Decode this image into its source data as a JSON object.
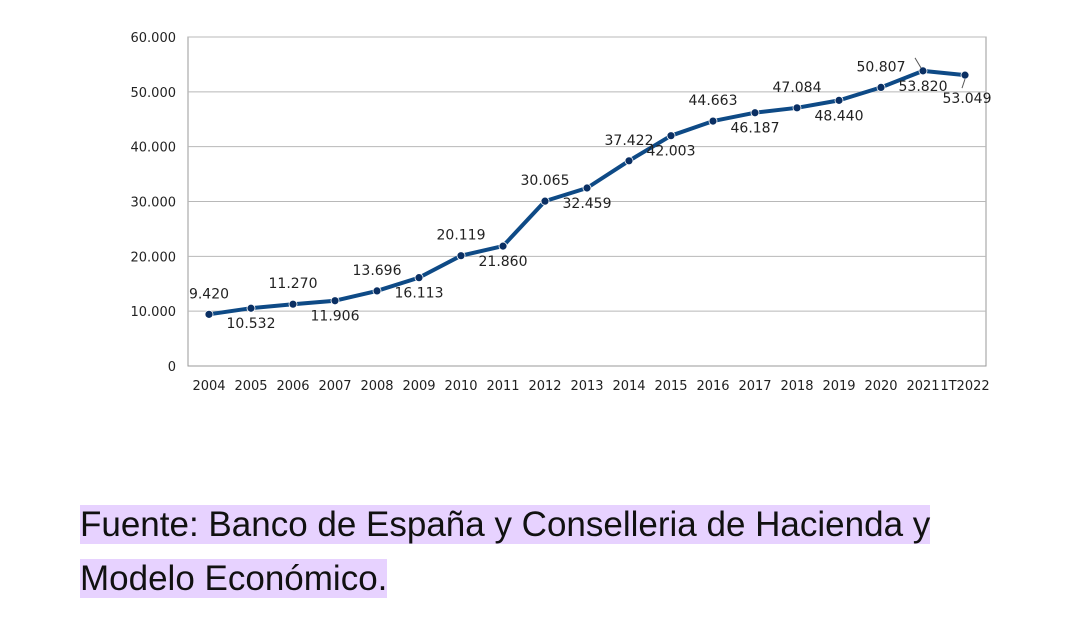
{
  "chart_data": {
    "type": "line",
    "categories": [
      "2004",
      "2005",
      "2006",
      "2007",
      "2008",
      "2009",
      "2010",
      "2011",
      "2012",
      "2013",
      "2014",
      "2015",
      "2016",
      "2017",
      "2018",
      "2019",
      "2020",
      "2021",
      "1T2022"
    ],
    "series": [
      {
        "values": [
          9420,
          10532,
          11270,
          11906,
          13696,
          16113,
          20119,
          21860,
          30065,
          32459,
          37422,
          42003,
          44663,
          46187,
          47084,
          48440,
          50807,
          53820,
          53049
        ]
      }
    ],
    "data_labels": [
      "9.420",
      "10.532",
      "11.270",
      "11.906",
      "13.696",
      "16.113",
      "20.119",
      "21.860",
      "30.065",
      "32.459",
      "37.422",
      "42.003",
      "44.663",
      "46.187",
      "47.084",
      "48.440",
      "50.807",
      "53.820",
      "53.049"
    ],
    "ylim": [
      0,
      60000
    ],
    "yticks": [
      0,
      10000,
      20000,
      30000,
      40000,
      50000,
      60000
    ],
    "ytick_labels": [
      "0",
      "10.000",
      "20.000",
      "30.000",
      "40.000",
      "50.000",
      "60.000"
    ],
    "grid": true,
    "line_color": "#0e4a86",
    "marker_color": "#0a2f63",
    "title": "",
    "xlabel": "",
    "ylabel": ""
  },
  "caption": {
    "text": "Fuente: Banco de España y Conselleria de Hacienda y Modelo Económico.",
    "highlight_color": "#e7d2ff"
  }
}
